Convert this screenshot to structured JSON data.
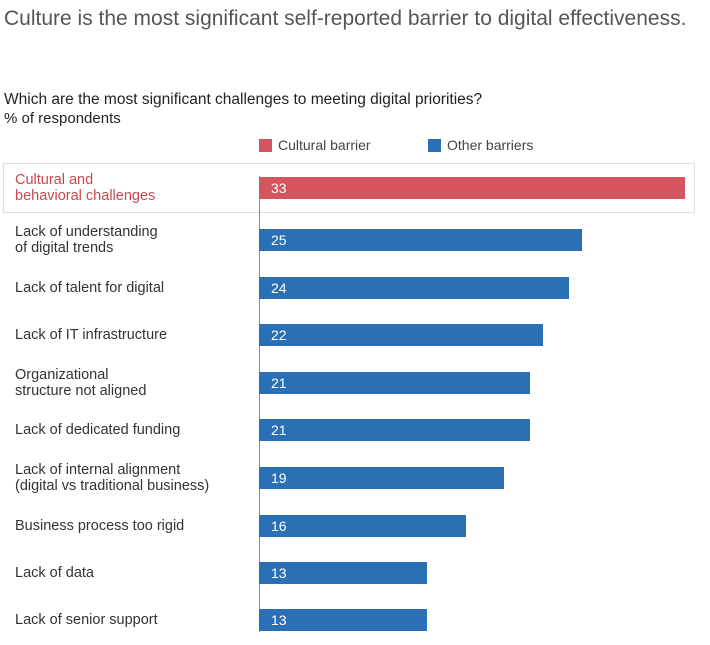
{
  "title": "Culture is the most significant self-reported barrier to digital effectiveness.",
  "chart_data": {
    "type": "bar",
    "title": "Which are the most significant challenges to meeting digital priorities?",
    "ylabel": "% of respondents",
    "legend": [
      {
        "name": "Cultural barrier",
        "color": "#d4555e"
      },
      {
        "name": "Other barriers",
        "color": "#2b6fb4"
      }
    ],
    "legend_position": "top",
    "xlim": [
      0,
      33
    ],
    "categories": [
      "Cultural and\nbehavioral challenges",
      "Lack of understanding\nof digital trends",
      "Lack of talent for digital",
      "Lack of IT infrastructure",
      "Organizational\nstructure not aligned",
      "Lack of dedicated funding",
      "Lack of internal alignment\n(digital vs traditional business)",
      "Business process too rigid",
      "Lack of data",
      "Lack of senior support"
    ],
    "values": [
      33,
      25,
      24,
      22,
      21,
      21,
      19,
      16,
      13,
      13
    ],
    "series_type": [
      "Cultural barrier",
      "Other barriers",
      "Other barriers",
      "Other barriers",
      "Other barriers",
      "Other barriers",
      "Other barriers",
      "Other barriers",
      "Other barriers",
      "Other barriers"
    ]
  }
}
